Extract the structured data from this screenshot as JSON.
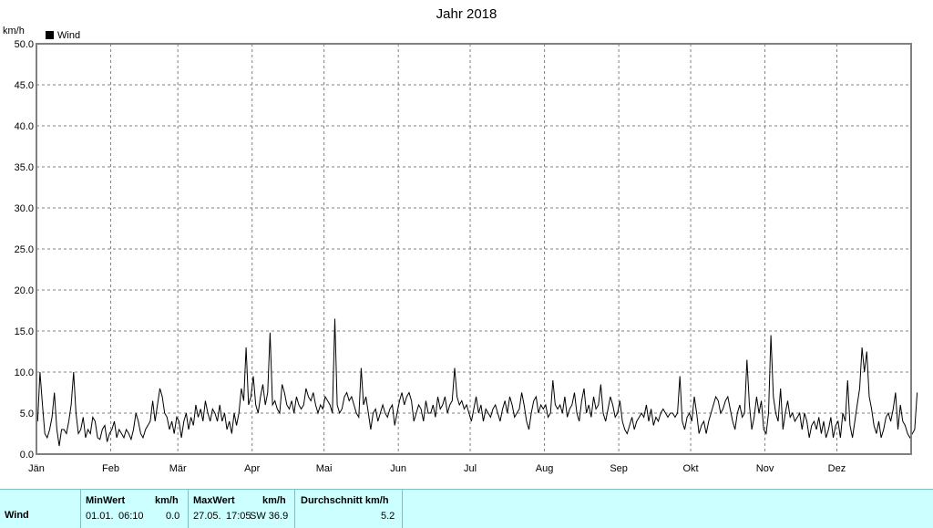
{
  "chart_data": {
    "type": "line",
    "title": "Jahr 2018",
    "ylabel": "km/h",
    "xlabel": "",
    "ylim": [
      0,
      50
    ],
    "yticks": [
      "0.0",
      "5.0",
      "10.0",
      "15.0",
      "20.0",
      "25.0",
      "30.0",
      "35.0",
      "40.0",
      "45.0",
      "50.0"
    ],
    "months": [
      "Jän",
      "Feb",
      "Mär",
      "Apr",
      "Mai",
      "Jun",
      "Jul",
      "Aug",
      "Sep",
      "Okt",
      "Nov",
      "Dez"
    ],
    "grid": true,
    "legend_position": "top-left",
    "series": [
      {
        "name": "Wind",
        "color": "#000000",
        "x_day_of_year_start": 1,
        "values": [
          4.0,
          10.0,
          6.0,
          2.5,
          2.0,
          3.0,
          4.5,
          7.5,
          3.0,
          1.0,
          3.0,
          3.0,
          2.5,
          4.0,
          6.0,
          10.0,
          5.0,
          2.5,
          3.0,
          4.5,
          2.0,
          3.0,
          2.5,
          4.5,
          4.0,
          2.0,
          1.8,
          3.0,
          3.5,
          1.5,
          2.5,
          3.0,
          4.0,
          2.0,
          3.0,
          2.5,
          2.0,
          3.0,
          2.5,
          1.8,
          3.0,
          5.0,
          4.0,
          2.5,
          2.0,
          3.0,
          3.5,
          4.0,
          6.5,
          4.0,
          6.0,
          8.0,
          7.0,
          5.0,
          4.5,
          3.0,
          4.0,
          2.5,
          4.5,
          4.0,
          2.0,
          4.0,
          5.0,
          3.0,
          4.5,
          3.5,
          6.0,
          4.5,
          5.5,
          4.0,
          6.5,
          5.0,
          4.0,
          5.5,
          5.0,
          4.0,
          6.0,
          4.0,
          5.0,
          3.0,
          4.0,
          2.5,
          5.0,
          3.5,
          5.0,
          8.0,
          6.5,
          13.0,
          6.0,
          7.0,
          9.5,
          6.0,
          5.0,
          7.0,
          8.5,
          6.0,
          7.5,
          14.8,
          6.0,
          6.5,
          5.5,
          5.0,
          8.5,
          7.5,
          6.0,
          5.5,
          6.5,
          5.0,
          7.0,
          6.0,
          5.5,
          6.0,
          8.0,
          7.0,
          6.5,
          7.5,
          6.0,
          5.0,
          6.0,
          5.5,
          7.0,
          6.5,
          6.0,
          5.0,
          16.5,
          6.0,
          5.0,
          5.5,
          7.0,
          7.5,
          6.5,
          7.0,
          6.0,
          5.0,
          4.5,
          10.5,
          6.0,
          7.0,
          5.0,
          3.0,
          5.0,
          5.5,
          4.0,
          5.0,
          6.0,
          5.0,
          4.5,
          5.5,
          6.0,
          3.5,
          5.0,
          6.5,
          7.5,
          6.0,
          7.0,
          7.5,
          6.5,
          4.0,
          5.0,
          6.0,
          5.5,
          4.0,
          6.5,
          5.0,
          5.0,
          6.0,
          4.5,
          7.0,
          5.5,
          6.0,
          7.0,
          5.0,
          6.0,
          6.5,
          10.5,
          7.0,
          6.0,
          6.5,
          5.5,
          6.0,
          5.0,
          4.0,
          5.5,
          7.0,
          5.0,
          6.0,
          4.0,
          5.5,
          5.0,
          4.5,
          5.5,
          6.0,
          5.0,
          4.0,
          5.5,
          6.5,
          5.0,
          7.0,
          6.0,
          4.5,
          5.0,
          5.5,
          7.5,
          6.0,
          4.0,
          3.0,
          5.0,
          6.5,
          7.0,
          5.0,
          6.0,
          5.5,
          6.0,
          4.5,
          5.0,
          9.0,
          6.0,
          5.5,
          6.0,
          5.0,
          7.0,
          4.5,
          5.5,
          6.0,
          7.5,
          5.0,
          4.0,
          6.5,
          8.0,
          5.0,
          6.0,
          4.5,
          7.0,
          5.5,
          6.0,
          8.5,
          5.0,
          4.0,
          5.5,
          7.0,
          6.0,
          4.5,
          5.0,
          6.5,
          4.0,
          3.0,
          2.5,
          3.5,
          4.5,
          3.0,
          4.0,
          4.5,
          5.0,
          4.5,
          6.0,
          4.0,
          5.5,
          3.5,
          4.5,
          4.0,
          5.0,
          5.5,
          5.0,
          4.5,
          5.0,
          5.0,
          4.5,
          5.0,
          9.5,
          4.0,
          3.0,
          4.5,
          5.0,
          4.0,
          7.0,
          5.0,
          2.5,
          3.5,
          4.0,
          2.5,
          4.0,
          5.0,
          6.0,
          7.0,
          6.5,
          5.0,
          5.5,
          6.5,
          7.0,
          5.5,
          4.0,
          3.0,
          5.0,
          6.0,
          4.5,
          5.0,
          11.5,
          6.0,
          3.0,
          4.5,
          7.0,
          5.0,
          6.5,
          3.0,
          2.5,
          5.0,
          14.5,
          7.0,
          5.0,
          4.0,
          8.0,
          3.0,
          5.0,
          6.5,
          4.5,
          5.0,
          4.0,
          4.5,
          5.0,
          3.0,
          5.0,
          4.0,
          2.0,
          3.5,
          4.0,
          3.0,
          4.5,
          2.5,
          4.0,
          2.0,
          3.0,
          4.5,
          2.0,
          3.5,
          4.0,
          2.0,
          5.0,
          4.0,
          9.0,
          3.5,
          2.0,
          4.0,
          6.0,
          8.0,
          13.0,
          10.0,
          12.5,
          7.0,
          5.5,
          3.5,
          2.5,
          4.0,
          2.0,
          3.0,
          4.5,
          5.0,
          4.0,
          5.5,
          7.5,
          3.0,
          6.0,
          4.0,
          3.5,
          2.5,
          2.0,
          2.5,
          3.0,
          7.5
        ]
      }
    ]
  },
  "legend": {
    "label": "Wind",
    "color": "#000000"
  },
  "stats": {
    "row_label": "Wind",
    "min_header": "MinWert",
    "min_unit": "km/h",
    "min_date": "01.01.",
    "min_time": "06:10",
    "min_value": "0.0",
    "max_header": "MaxWert",
    "max_unit": "km/h",
    "max_date": "27.05.",
    "max_time": "17:05",
    "max_dir_value": "SW 36.9",
    "avg_header": "Durchschnitt km/h",
    "avg_value": "5.2"
  }
}
